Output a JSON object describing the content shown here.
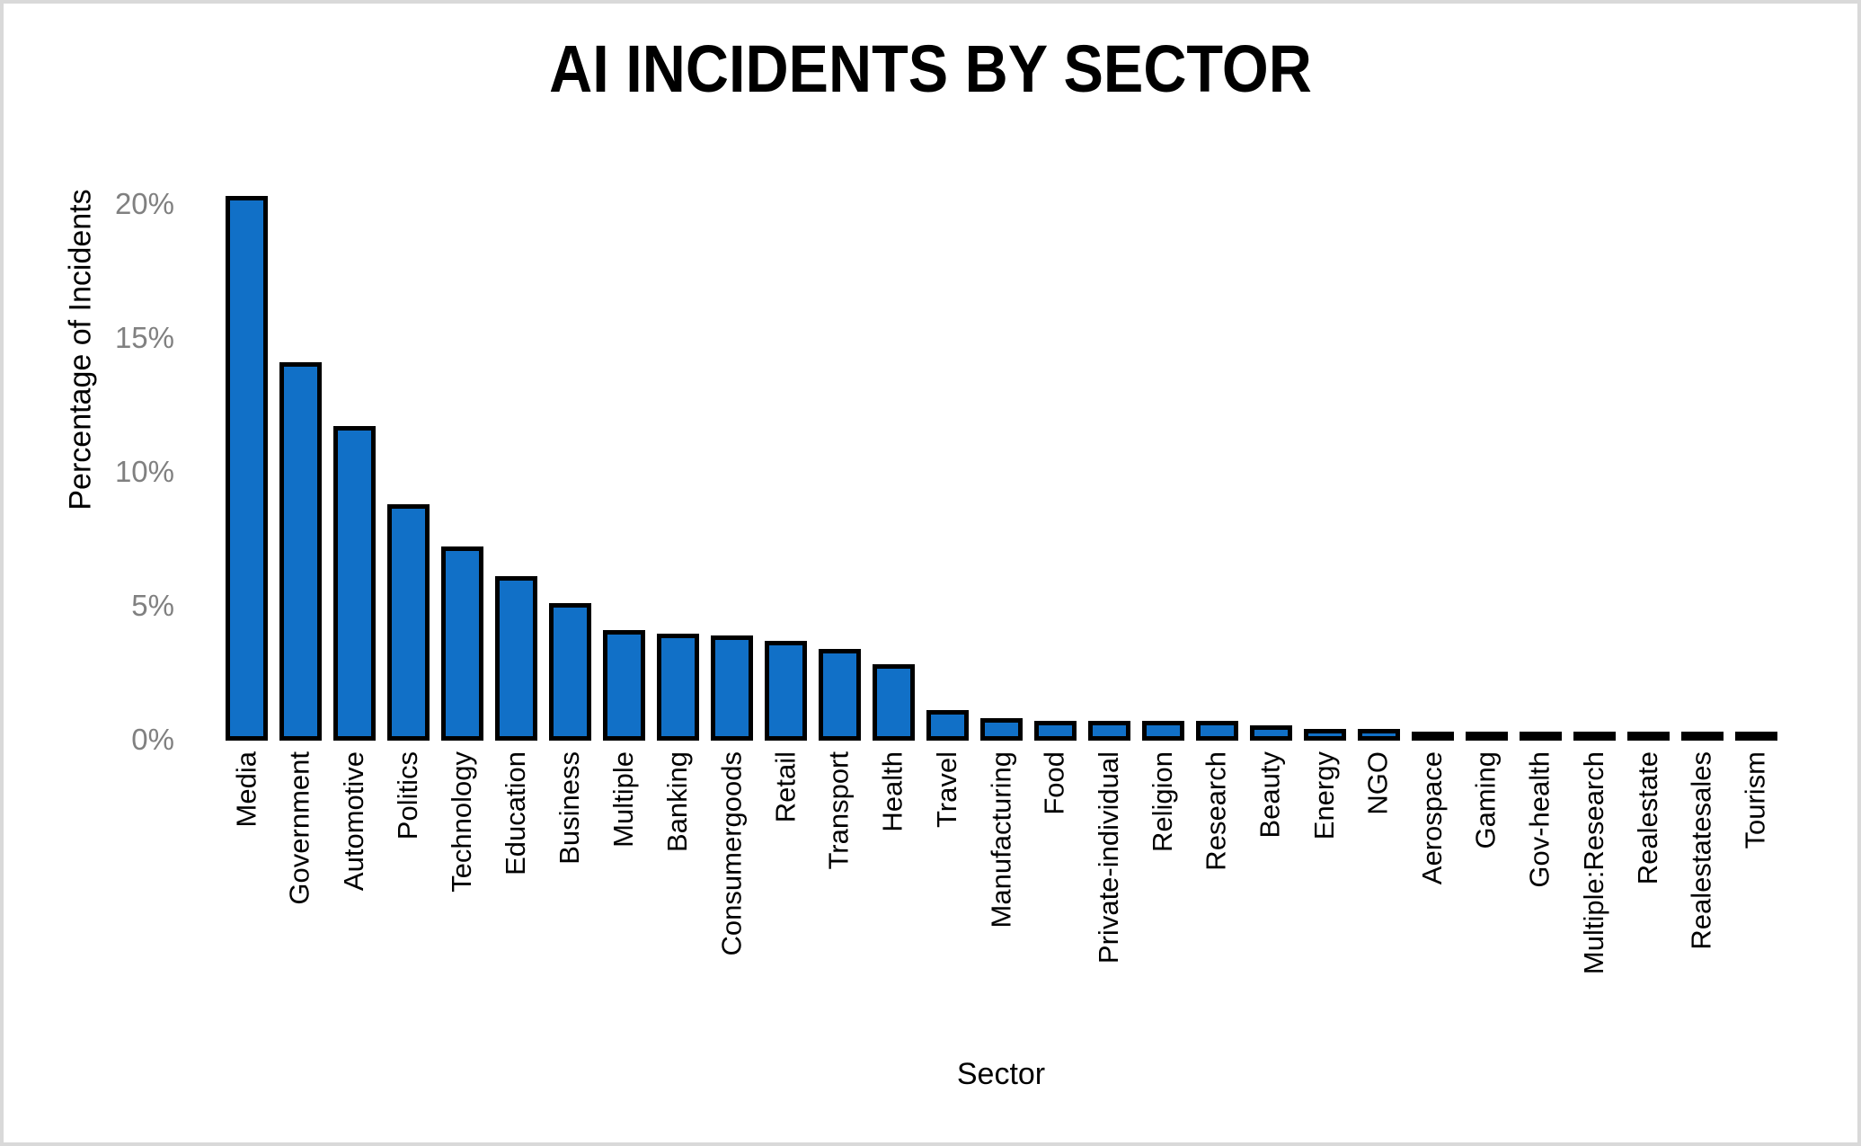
{
  "chart_data": {
    "type": "bar",
    "title": "AI INCIDENTS BY SECTOR",
    "xlabel": "Sector",
    "ylabel": "Percentage of Incidents",
    "ylim": [
      0,
      21
    ],
    "grid": false,
    "legend": "none",
    "y_ticks": [
      {
        "label": "0%",
        "value": 0
      },
      {
        "label": "5%",
        "value": 5
      },
      {
        "label": "10%",
        "value": 10
      },
      {
        "label": "15%",
        "value": 15
      },
      {
        "label": "20%",
        "value": 20
      }
    ],
    "categories": [
      "Media",
      "Government",
      "Automotive",
      "Politics",
      "Technology",
      "Education",
      "Business",
      "Multiple",
      "Banking",
      "Consumergoods",
      "Retail",
      "Transport",
      "Health",
      "Travel",
      "Manufacturing",
      "Food",
      "Private-individual",
      "Religion",
      "Research",
      "Beauty",
      "Energy",
      "NGO",
      "Aerospace",
      "Gaming",
      "Gov-health",
      "Multiple:Research",
      "Realestate",
      "Realestatesales",
      "Tourism"
    ],
    "values": [
      20.2,
      14.0,
      11.6,
      8.7,
      7.1,
      6.0,
      5.0,
      4.0,
      3.85,
      3.8,
      3.6,
      3.3,
      2.7,
      1.0,
      0.7,
      0.6,
      0.6,
      0.6,
      0.6,
      0.45,
      0.3,
      0.3,
      0.1,
      0.1,
      0.1,
      0.1,
      0.1,
      0.1,
      0.1
    ],
    "colors": {
      "bar_fill": "#1170C7",
      "bar_border": "#000000",
      "tick_text": "#808080",
      "axis_text": "#000000",
      "background": "#FFFFFF",
      "frame_border": "#D9D9D9"
    }
  }
}
